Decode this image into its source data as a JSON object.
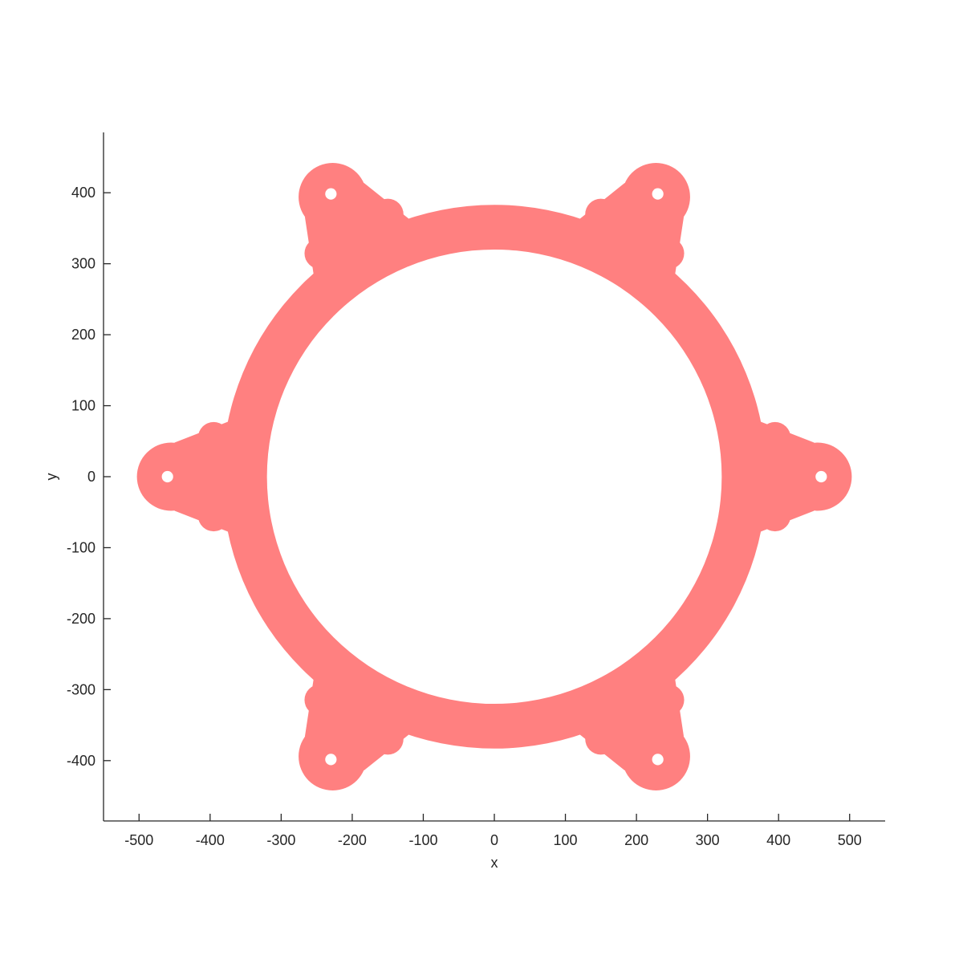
{
  "chart_data": {
    "type": "shape",
    "xlabel": "x",
    "ylabel": "y",
    "xlim": [
      -550,
      550
    ],
    "ylim": [
      -485,
      485
    ],
    "xticks": [
      -500,
      -400,
      -300,
      -200,
      -100,
      0,
      100,
      200,
      300,
      400,
      500
    ],
    "yticks": [
      -400,
      -300,
      -200,
      -100,
      0,
      100,
      200,
      300,
      400
    ],
    "equal_aspect": true,
    "grid": false,
    "fill_color": "#ff8080",
    "ring": {
      "outer_radius": 383,
      "inner_radius": 320
    },
    "lugs": {
      "count": 6,
      "center_radius": 460,
      "first_angle_deg": 0,
      "hole_radius": 8,
      "lug_radius": 48
    }
  }
}
